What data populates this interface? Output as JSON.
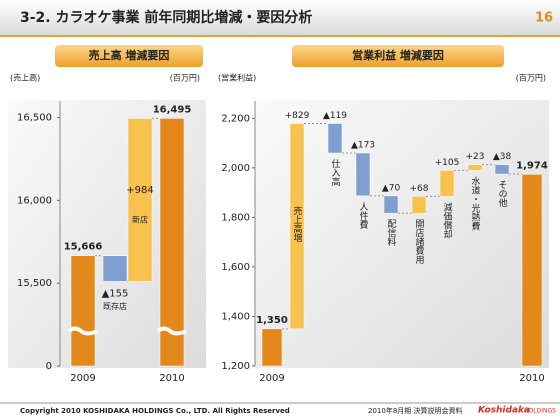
{
  "header": {
    "title": "3-2. カラオケ事業 前年同期比増減・要因分析",
    "page": "16"
  },
  "chart_data": [
    {
      "type": "waterfall",
      "title": "売上高 増減要因",
      "y_label": "(売上高)",
      "unit": "(百万円)",
      "categories": [
        "2009",
        "既存店",
        "新店",
        "2010"
      ],
      "measures": [
        "total",
        "relative",
        "relative",
        "total"
      ],
      "values": [
        15666,
        -155,
        984,
        16495
      ],
      "value_labels": [
        "15,666",
        "▲155",
        "+984",
        "16,495"
      ],
      "ylim": [
        15000,
        16600
      ],
      "yticks": [
        0,
        {
          "value": 15500,
          "label": "15,500"
        },
        {
          "value": 16000,
          "label": "16,000"
        },
        {
          "value": 16500,
          "label": "16,500"
        }
      ],
      "axis_break": true,
      "colors": {
        "total": "#e3891c",
        "increase": "#f8c24e",
        "decrease": "#7f9fd2"
      }
    },
    {
      "type": "waterfall",
      "title": "営業利益 増減要因",
      "y_label": "(営業利益)",
      "unit": "(百万円)",
      "categories": [
        "2009",
        "売上高増",
        "仕入高",
        "人件費",
        "配信料",
        "開店諸費用",
        "減価償却",
        "水道・光熱費",
        "その他",
        "2010"
      ],
      "measures": [
        "total",
        "relative",
        "relative",
        "relative",
        "relative",
        "relative",
        "relative",
        "relative",
        "relative",
        "total"
      ],
      "values": [
        1350,
        829,
        -119,
        -173,
        -70,
        68,
        105,
        23,
        -38,
        1974
      ],
      "value_labels": [
        "1,350",
        "+829",
        "▲119",
        "▲173",
        "▲70",
        "+68",
        "+105",
        "+23",
        "▲38",
        "1,974"
      ],
      "ylim": [
        1200,
        2270
      ],
      "yticks": [
        {
          "value": 1200,
          "label": "1,200"
        },
        {
          "value": 1400,
          "label": "1,400"
        },
        {
          "value": 1600,
          "label": "1,600"
        },
        {
          "value": 1800,
          "label": "1,800"
        },
        {
          "value": 2000,
          "label": "2,000"
        },
        {
          "value": 2200,
          "label": "2,200"
        }
      ],
      "axis_break": false,
      "colors": {
        "total": "#e3891c",
        "increase": "#f8c24e",
        "decrease": "#7f9fd2"
      }
    }
  ],
  "footer": {
    "copyright": "Copyright 2010 KOSHIDAKA HOLDINGS Co., LTD. All Rights Reserved",
    "document": "2010年8月期 決算説明会資料",
    "logo": "Koshidaka",
    "logo_sub": "HOLDINGS"
  }
}
